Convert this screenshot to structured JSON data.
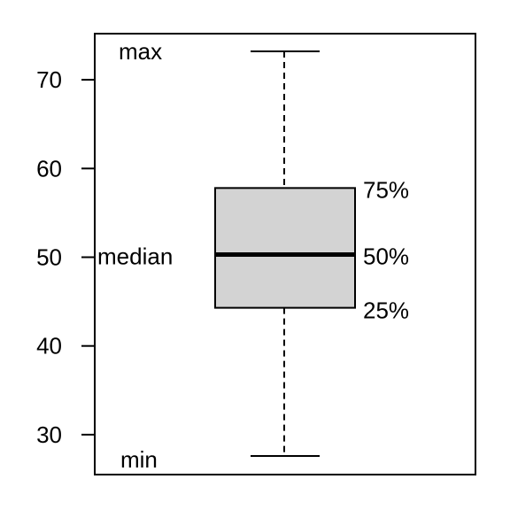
{
  "chart_data": {
    "type": "box",
    "title": "",
    "xlabel": "",
    "ylabel": "",
    "ylim": [
      25.5,
      75.2
    ],
    "y_ticks": [
      30,
      40,
      50,
      60,
      70
    ],
    "y_tick_labels": [
      "30",
      "40",
      "50",
      "60",
      "70"
    ],
    "box": {
      "min": 27.6,
      "q1": 44.3,
      "median": 50.3,
      "q3": 57.8,
      "max": 73.2
    },
    "annotations": {
      "max": "max",
      "min": "min",
      "median": "median",
      "q3": "75%",
      "median_pct": "50%",
      "q1": "25%"
    },
    "colors": {
      "box_fill": "#d3d3d3",
      "lines": "#000000",
      "background": "#ffffff"
    },
    "grid": false,
    "whisker_style": "dashed"
  }
}
